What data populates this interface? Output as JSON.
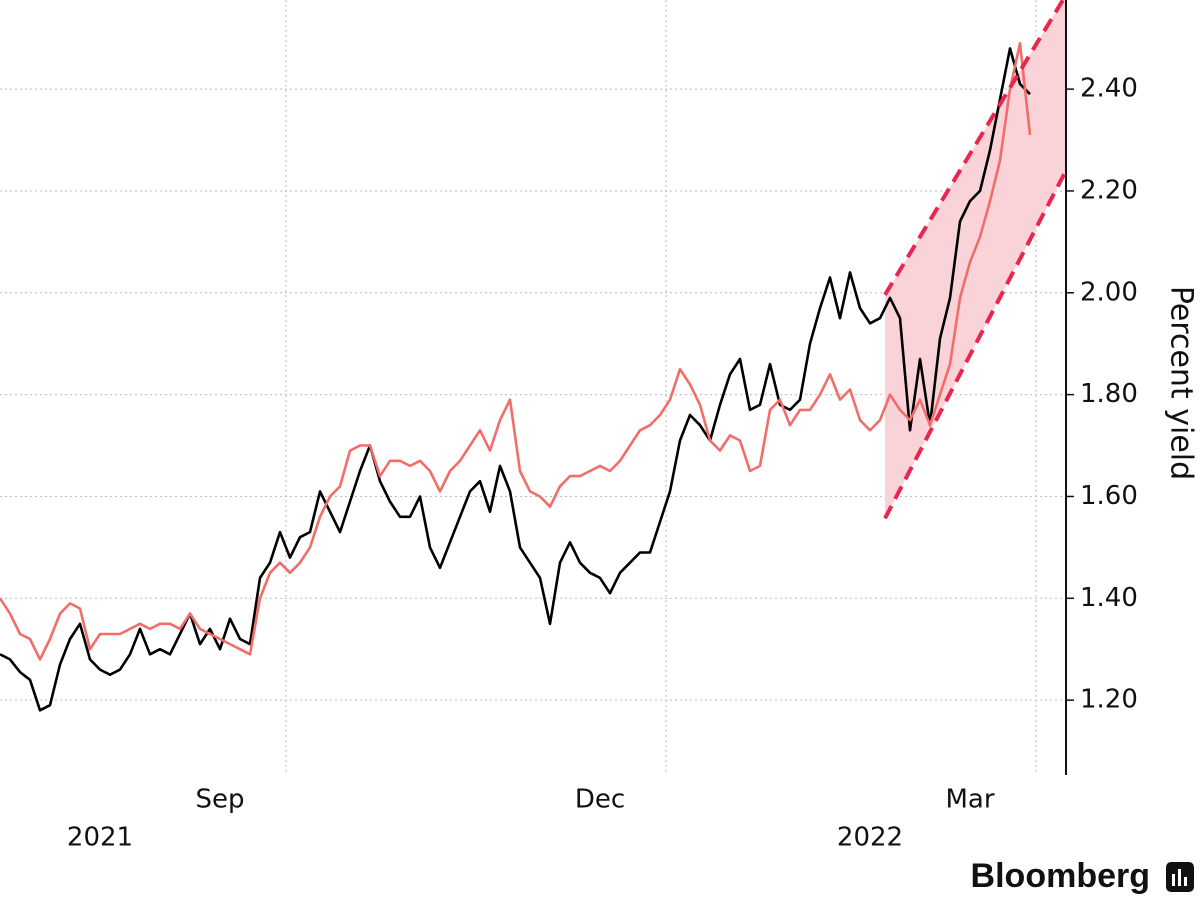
{
  "chart_data": {
    "type": "line",
    "y_label": "Percent yield",
    "source": "Bloomberg",
    "categories": [
      null,
      null,
      null,
      null,
      null,
      null,
      null,
      null,
      null,
      null,
      null,
      null,
      null,
      null,
      null,
      null,
      null,
      null,
      null,
      null,
      null,
      null,
      "Sep",
      null,
      null,
      null,
      null,
      null,
      null,
      null,
      null,
      null,
      null,
      null,
      null,
      null,
      null,
      null,
      null,
      null,
      null,
      null,
      null,
      null,
      null,
      null,
      null,
      null,
      null,
      null,
      null,
      null,
      null,
      null,
      null,
      null,
      null,
      null,
      null,
      null,
      "Dec",
      null,
      null,
      null,
      null,
      null,
      null,
      null,
      null,
      null,
      null,
      null,
      null,
      null,
      null,
      null,
      null,
      null,
      null,
      null,
      null,
      null,
      null,
      null,
      null,
      null,
      null,
      null,
      null,
      null,
      null,
      null,
      null,
      null,
      null,
      null,
      null,
      "Mar",
      null,
      null,
      null,
      null,
      null,
      null
    ],
    "x_years": [
      null,
      null,
      null,
      null,
      null,
      null,
      null,
      null,
      null,
      null,
      "2021",
      null,
      null,
      null,
      null,
      null,
      null,
      null,
      null,
      null,
      null,
      null,
      null,
      null,
      null,
      null,
      null,
      null,
      null,
      null,
      null,
      null,
      null,
      null,
      null,
      null,
      null,
      null,
      null,
      null,
      null,
      null,
      null,
      null,
      null,
      null,
      null,
      null,
      null,
      null,
      null,
      null,
      null,
      null,
      null,
      null,
      null,
      null,
      null,
      null,
      null,
      null,
      null,
      null,
      null,
      null,
      null,
      null,
      null,
      null,
      null,
      null,
      null,
      null,
      null,
      null,
      null,
      null,
      null,
      null,
      null,
      null,
      null,
      null,
      null,
      null,
      null,
      "2022",
      null,
      null,
      null,
      null,
      null,
      null,
      null,
      null,
      null,
      null,
      null,
      null,
      null,
      null,
      null,
      null
    ],
    "series": [
      {
        "color": "#000000",
        "values": [
          1.29,
          1.28,
          1.255,
          1.24,
          1.18,
          1.19,
          1.27,
          1.32,
          1.35,
          1.28,
          1.26,
          1.25,
          1.26,
          1.29,
          1.34,
          1.29,
          1.3,
          1.29,
          1.33,
          1.37,
          1.31,
          1.34,
          1.3,
          1.36,
          1.32,
          1.31,
          1.44,
          1.47,
          1.53,
          1.48,
          1.52,
          1.53,
          1.61,
          1.57,
          1.53,
          1.59,
          1.65,
          1.7,
          1.63,
          1.59,
          1.56,
          1.56,
          1.6,
          1.5,
          1.46,
          1.51,
          1.56,
          1.61,
          1.63,
          1.57,
          1.66,
          1.61,
          1.5,
          1.47,
          1.44,
          1.35,
          1.47,
          1.51,
          1.47,
          1.45,
          1.44,
          1.41,
          1.45,
          1.47,
          1.49,
          1.49,
          1.55,
          1.61,
          1.71,
          1.76,
          1.74,
          1.71,
          1.78,
          1.84,
          1.87,
          1.77,
          1.78,
          1.86,
          1.78,
          1.77,
          1.79,
          1.9,
          1.97,
          2.03,
          1.95,
          2.04,
          1.97,
          1.94,
          1.95,
          1.99,
          1.95,
          1.73,
          1.87,
          1.74,
          1.91,
          1.99,
          2.14,
          2.18,
          2.2,
          2.28,
          2.38,
          2.48,
          2.41,
          2.39
        ]
      },
      {
        "color": "#f26d6a",
        "values": [
          1.4,
          1.37,
          1.33,
          1.32,
          1.28,
          1.32,
          1.37,
          1.39,
          1.38,
          1.3,
          1.33,
          1.33,
          1.33,
          1.34,
          1.35,
          1.34,
          1.35,
          1.35,
          1.34,
          1.37,
          1.34,
          1.33,
          1.32,
          1.31,
          1.3,
          1.29,
          1.4,
          1.45,
          1.47,
          1.45,
          1.47,
          1.5,
          1.56,
          1.6,
          1.62,
          1.69,
          1.7,
          1.7,
          1.64,
          1.67,
          1.67,
          1.66,
          1.67,
          1.65,
          1.61,
          1.65,
          1.67,
          1.7,
          1.73,
          1.69,
          1.75,
          1.79,
          1.65,
          1.61,
          1.6,
          1.58,
          1.62,
          1.64,
          1.64,
          1.65,
          1.66,
          1.65,
          1.67,
          1.7,
          1.73,
          1.74,
          1.76,
          1.79,
          1.85,
          1.82,
          1.78,
          1.71,
          1.69,
          1.72,
          1.71,
          1.65,
          1.66,
          1.77,
          1.79,
          1.74,
          1.77,
          1.77,
          1.8,
          1.84,
          1.79,
          1.81,
          1.75,
          1.73,
          1.75,
          1.8,
          1.77,
          1.75,
          1.79,
          1.74,
          1.8,
          1.86,
          1.99,
          2.06,
          2.11,
          2.18,
          2.26,
          2.4,
          2.49,
          2.31
        ]
      }
    ],
    "channel": {
      "upper": [
        1.996,
        2.585
      ],
      "lower": [
        1.557,
        2.24
      ],
      "color": "#e8264f",
      "fill": "#f9d3d8"
    },
    "ylim": [
      1.053,
      2.575
    ],
    "yticks": [
      {
        "value": 1.2,
        "label": "1.20"
      },
      {
        "value": 1.4,
        "label": "1.40"
      },
      {
        "value": 1.6,
        "label": "1.60"
      },
      {
        "value": 1.8,
        "label": "1.80"
      },
      {
        "value": 2.0,
        "label": "2.00"
      },
      {
        "value": 2.2,
        "label": "2.20"
      },
      {
        "value": 2.4,
        "label": "2.40"
      }
    ],
    "grid": true
  }
}
